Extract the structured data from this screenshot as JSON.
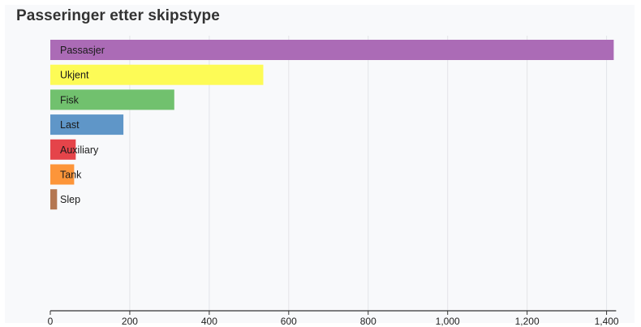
{
  "title": "Passeringer etter skipstype",
  "chart_data": {
    "type": "bar",
    "orientation": "horizontal",
    "title": "Passeringer etter skipstype",
    "xlabel": "",
    "ylabel": "",
    "xlim": [
      0,
      1420
    ],
    "x_ticks": [
      0,
      200,
      400,
      600,
      800,
      1000,
      1200,
      1400
    ],
    "x_tick_labels": [
      "0",
      "200",
      "400",
      "600",
      "800",
      "1,000",
      "1,200",
      "1,400"
    ],
    "grid": true,
    "categories": [
      "Passasjer",
      "Ukjent",
      "Fisk",
      "Last",
      "Auxiliary",
      "Tank",
      "Slep"
    ],
    "values": [
      1418,
      536,
      312,
      184,
      64,
      60,
      17
    ],
    "colors": [
      "#ab6bb6",
      "#fdfb56",
      "#71c16e",
      "#5f96c8",
      "#e5444a",
      "#fd9539",
      "#b47752"
    ]
  }
}
